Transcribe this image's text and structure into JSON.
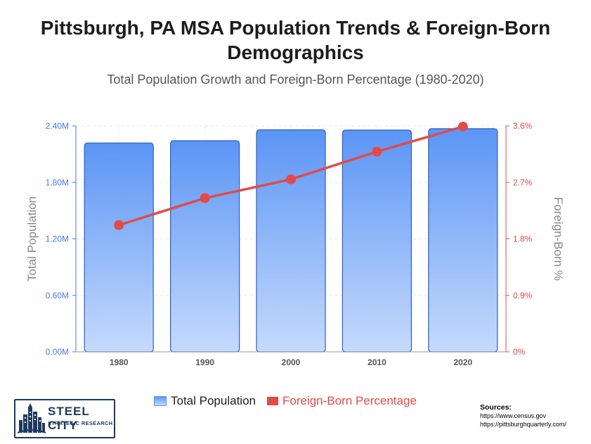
{
  "title": "Pittsburgh, PA MSA Population Trends & Foreign-Born Demographics",
  "subtitle": "Total Population Growth and Foreign-Born Percentage (1980-2020)",
  "chart_data": {
    "type": "bar+line",
    "categories": [
      "1980",
      "1990",
      "2000",
      "2010",
      "2020"
    ],
    "series": [
      {
        "name": "Total Population",
        "type": "bar",
        "axis": "left",
        "values": [
          2218870,
          2242798,
          2358695,
          2356285,
          2370930
        ]
      },
      {
        "name": "Foreign-Born Percentage",
        "type": "line",
        "axis": "right",
        "values": [
          2.02,
          2.45,
          2.75,
          3.19,
          3.59
        ]
      }
    ],
    "ylabel": "Total Population",
    "y2label": "Foreign-Born %",
    "ylim": [
      0,
      2400000
    ],
    "y2lim": [
      0,
      3.6
    ],
    "yticks": [
      "0.00M",
      "0.60M",
      "1.20M",
      "1.80M",
      "2.40M"
    ],
    "y2ticks": [
      "0%",
      "0.9%",
      "1.8%",
      "2.7%",
      "3.6%"
    ],
    "grid": true,
    "legend": "bottom-center"
  },
  "colors": {
    "bar_top": "#5b95f5",
    "bar_bottom": "#c6dafc",
    "bar_border": "#2f5fc0",
    "line": "#e24a4a",
    "left_axis": "#4a7bd8",
    "right_axis": "#e24a4a"
  },
  "legend": {
    "population": "Total Population",
    "foreign": "Foreign-Born Percentage"
  },
  "logo": {
    "name": "STEEL CITY",
    "tagline": "STRATEGIC RESEARCH",
    "icon": "city-skyline-icon"
  },
  "sources": {
    "label": "Sources:",
    "links": [
      "https://www.census.gov",
      "https://pittsburghquarterly.com/"
    ]
  }
}
